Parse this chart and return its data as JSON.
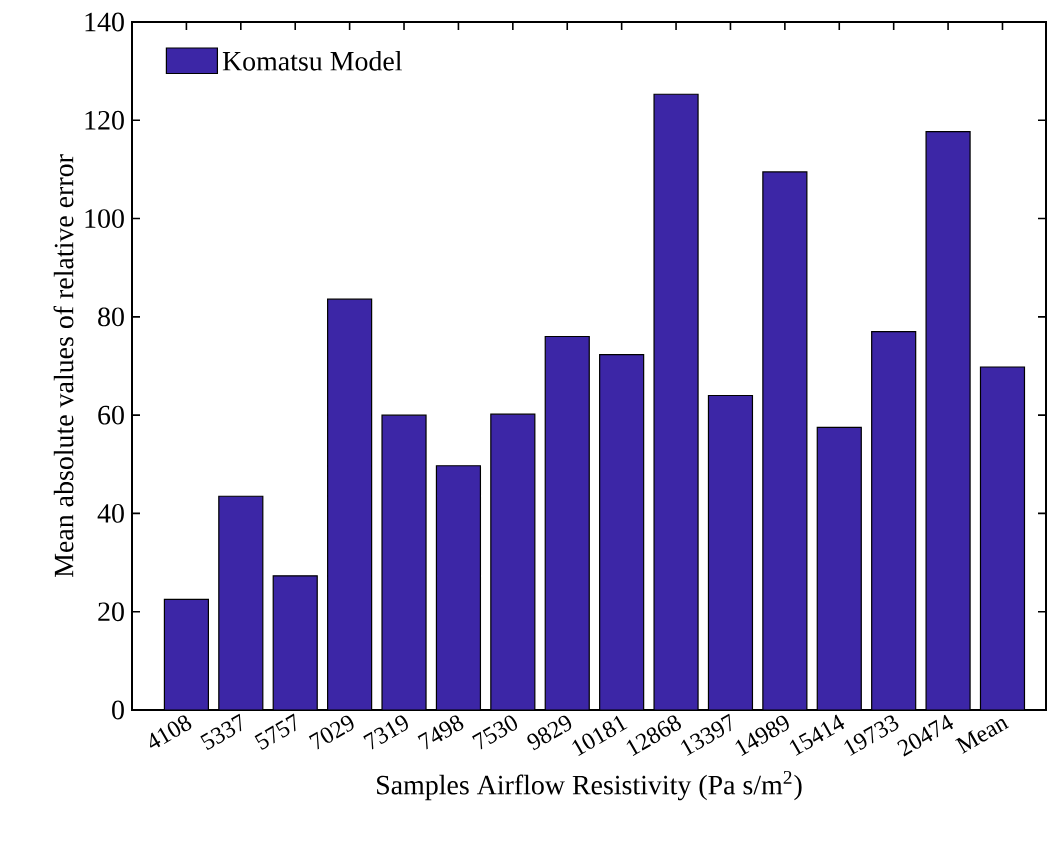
{
  "chart_data": {
    "type": "bar",
    "xlabel": "Samples Airflow Resistivity (Pa s/m$^{2}$)",
    "ylabel": "Mean absolute values of relative error",
    "categories": [
      "4108",
      "5337",
      "5757",
      "7029",
      "7319",
      "7498",
      "7530",
      "9829",
      "10181",
      "12868",
      "13397",
      "14989",
      "15414",
      "19733",
      "20474",
      "Mean"
    ],
    "series": [
      {
        "name": "Komatsu Model",
        "color": "#3c26a6",
        "values": [
          22.5,
          43.5,
          27.3,
          83.6,
          60,
          49.7,
          60.2,
          76,
          72.3,
          125.3,
          64,
          109.5,
          57.5,
          77,
          117.7,
          69.8
        ]
      }
    ],
    "ylim": [
      0,
      140
    ],
    "yticks": [
      0,
      20,
      40,
      60,
      80,
      100,
      120,
      140
    ],
    "legend": "top left",
    "grid": false
  }
}
